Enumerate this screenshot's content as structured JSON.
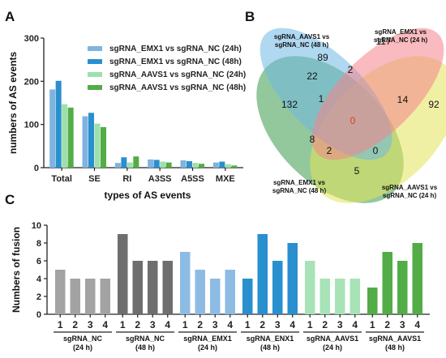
{
  "panels": {
    "a": "A",
    "b": "B",
    "c": "C"
  },
  "chart_data": [
    {
      "panel": "A",
      "type": "bar",
      "categories": [
        "Total",
        "SE",
        "RI",
        "A3SS",
        "A5SS",
        "MXE"
      ],
      "series": [
        {
          "name": "sgRNA_EMX1 vs sgRNA_NC (24h)",
          "color": "#7fb3e0",
          "values": [
            181,
            119,
            11,
            19,
            17,
            12
          ]
        },
        {
          "name": "sgRNA_EMX1 vs sgRNA_NC (48h)",
          "color": "#2a8fce",
          "values": [
            201,
            127,
            24,
            18,
            15,
            14
          ]
        },
        {
          "name": "sgRNA_AAVS1 vs sgRNA_NC (24h)",
          "color": "#9ee0ad",
          "values": [
            147,
            102,
            12,
            14,
            11,
            8
          ]
        },
        {
          "name": "sgRNA_AAVS1 vs sgRNA_NC (48h)",
          "color": "#52ad46",
          "values": [
            139,
            94,
            26,
            12,
            9,
            5
          ]
        }
      ],
      "ylim": [
        0,
        300
      ],
      "yticks": [
        0,
        100,
        200,
        300
      ],
      "xlabel": "types of AS events",
      "ylabel": "numbers of AS events",
      "legend": "top-right",
      "grid": false
    },
    {
      "panel": "B",
      "type": "venn",
      "sets": [
        {
          "name": "sgRNA_AAVS1 vs sgRNA_NC (48 h)",
          "lines": [
            "sgRNA_AAVS1  vs",
            "sgRNA_NC (48 h)"
          ],
          "color": "#6fb8e6"
        },
        {
          "name": "sgRNA_EMX1 vs sgRNA_NC (24 h)",
          "lines": [
            "sgRNA_EMX1 vs",
            "sgRNA_NC (24 h)"
          ],
          "color": "#f4838a"
        },
        {
          "name": "sgRNA_EMX1 vs sgRNA_NC (48 h)",
          "lines": [
            "sgRNA_EMX1 vs",
            "sgRNA_NC (48 h)"
          ],
          "color": "#3a9a4a"
        },
        {
          "name": "sgRNA_AAVS1 vs sgRNA_NC (24 h)",
          "lines": [
            "sgRNA_AAVS1 vs",
            "sgRNA_NC (24 h)"
          ],
          "color": "#e3e35a"
        }
      ],
      "region_counts": [
        {
          "sets": [
            "AAVS1_48h"
          ],
          "value": 89
        },
        {
          "sets": [
            "EMX1_24h"
          ],
          "value": 117
        },
        {
          "sets": [
            "EMX1_48h"
          ],
          "value": 132
        },
        {
          "sets": [
            "AAVS1_24h"
          ],
          "value": 92
        },
        {
          "sets": [
            "EMX1_48h",
            "AAVS1_48h"
          ],
          "value": 22
        },
        {
          "sets": [
            "AAVS1_48h",
            "EMX1_24h"
          ],
          "value": 2
        },
        {
          "sets": [
            "EMX1_24h",
            "AAVS1_24h"
          ],
          "value": 4
        },
        {
          "sets": [
            "EMX1_48h",
            "AAVS1_24h"
          ],
          "value": 5
        },
        {
          "sets": [
            "EMX1_48h",
            "AAVS1_48h",
            "EMX1_24h"
          ],
          "value": 1
        },
        {
          "sets": [
            "AAVS1_48h",
            "EMX1_24h",
            "AAVS1_24h"
          ],
          "value": 1
        },
        {
          "sets": [
            "EMX1_48h",
            "AAVS1_48h",
            "AAVS1_24h"
          ],
          "value": 8
        },
        {
          "sets": [
            "EMX1_48h",
            "EMX1_24h",
            "AAVS1_24h"
          ],
          "value": 0
        },
        {
          "sets": [
            "EMX1_48h",
            "AAVS1_48h",
            "EMX1_24h",
            "AAVS1_24h"
          ],
          "value": 0
        },
        {
          "sets": [
            "EMX1_48h",
            "EMX1_24h"
          ],
          "value": 2
        }
      ]
    },
    {
      "panel": "C",
      "type": "bar",
      "ylabel": "Numbers of fusion",
      "ylim": [
        0,
        10
      ],
      "yticks": [
        0,
        2,
        4,
        6,
        8,
        10
      ],
      "groups": [
        {
          "label": "sgRNA_NC",
          "sublabel": "(24 h)",
          "color": "#a3a3a3",
          "categories": [
            "1",
            "2",
            "3",
            "4"
          ],
          "values": [
            5,
            4,
            4,
            4
          ]
        },
        {
          "label": "sgRNA_NC",
          "sublabel": "(48 h)",
          "color": "#6e6e6e",
          "categories": [
            "1",
            "2",
            "3",
            "4"
          ],
          "values": [
            9,
            6,
            6,
            6
          ]
        },
        {
          "label": "sgRNA_EMX1",
          "sublabel": "(24 h)",
          "color": "#8ebbe4",
          "categories": [
            "1",
            "2",
            "3",
            "4"
          ],
          "values": [
            7,
            5,
            4,
            5
          ]
        },
        {
          "label": "sgRNA_ENX1",
          "sublabel": "(48 h)",
          "color": "#2a8fce",
          "categories": [
            "1",
            "2",
            "3",
            "4"
          ],
          "values": [
            4,
            9,
            6,
            8
          ]
        },
        {
          "label": "sgRNA_AAVS1",
          "sublabel": "(24 h)",
          "color": "#a8e3b7",
          "categories": [
            "1",
            "2",
            "3",
            "4"
          ],
          "values": [
            6,
            4,
            4,
            4
          ]
        },
        {
          "label": "sgRNA_AAVS1",
          "sublabel": "(48 h)",
          "color": "#52ad46",
          "categories": [
            "1",
            "2",
            "3",
            "4"
          ],
          "values": [
            3,
            7,
            6,
            8
          ]
        }
      ],
      "grid": false
    }
  ]
}
